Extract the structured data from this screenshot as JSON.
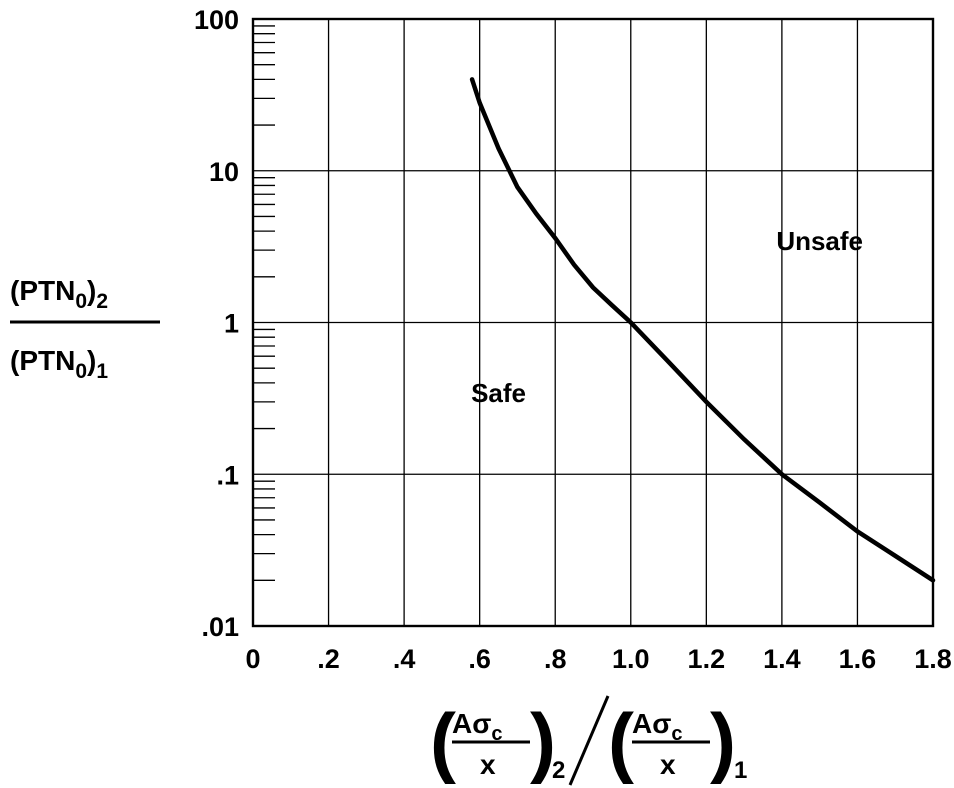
{
  "chart_data": {
    "type": "line",
    "xlim": [
      0,
      1.8
    ],
    "ylim": [
      0.01,
      100
    ],
    "yscale": "log",
    "grid": true,
    "x_ticks": [
      {
        "value": 0,
        "label": "0"
      },
      {
        "value": 0.2,
        "label": ".2"
      },
      {
        "value": 0.4,
        "label": ".4"
      },
      {
        "value": 0.6,
        "label": ".6"
      },
      {
        "value": 0.8,
        "label": ".8"
      },
      {
        "value": 1.0,
        "label": "1.0"
      },
      {
        "value": 1.2,
        "label": "1.2"
      },
      {
        "value": 1.4,
        "label": "1.4"
      },
      {
        "value": 1.6,
        "label": "1.6"
      },
      {
        "value": 1.8,
        "label": "1.8"
      }
    ],
    "y_ticks": [
      {
        "value": 0.01,
        "label": ".01"
      },
      {
        "value": 0.1,
        "label": ".1"
      },
      {
        "value": 1,
        "label": "1"
      },
      {
        "value": 10,
        "label": "10"
      },
      {
        "value": 100,
        "label": "100"
      }
    ],
    "ylabel": {
      "numerator": "(PTN",
      "numerator_sub": "0",
      "numerator_outer_sub": "2",
      "denominator": "(PTN",
      "denominator_sub": "0",
      "denominator_outer_sub": "1"
    },
    "xlabel": {
      "num": "Aσ",
      "num_sub": "c",
      "den": "x",
      "left_sub": "2",
      "right_sub": "1"
    },
    "series": [
      {
        "x": [
          0.58,
          0.6,
          0.65,
          0.7,
          0.75,
          0.8,
          0.85,
          0.9,
          0.95,
          1.0,
          1.1,
          1.2,
          1.3,
          1.4,
          1.5,
          1.6,
          1.7,
          1.8
        ],
        "y": [
          40,
          28,
          14,
          7.8,
          5.2,
          3.6,
          2.4,
          1.7,
          1.3,
          1.0,
          0.55,
          0.3,
          0.17,
          0.1,
          0.065,
          0.042,
          0.029,
          0.02
        ]
      }
    ],
    "annotations": [
      {
        "text": "Unsafe",
        "x": 1.5,
        "y": 3
      },
      {
        "text": "Safe",
        "x": 0.65,
        "y": 0.3
      }
    ]
  }
}
